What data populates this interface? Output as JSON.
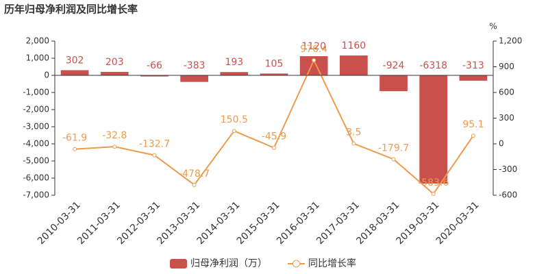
{
  "chart_data": {
    "type": "bar",
    "title": "历年归母净利润及同比增长率",
    "y2_label": "%",
    "categories": [
      "2010-03-31",
      "2011-03-31",
      "2012-03-31",
      "2013-03-31",
      "2014-03-31",
      "2015-03-31",
      "2016-03-31",
      "2017-03-31",
      "2018-03-31",
      "2019-03-31",
      "2020-03-31"
    ],
    "series": [
      {
        "name": "归母净利润（万）",
        "type": "bar",
        "color": "#c9504c",
        "values": [
          302,
          203,
          -66,
          -383,
          193,
          105,
          1120,
          1160,
          -924,
          -6318,
          -313
        ]
      },
      {
        "name": "同比增长率",
        "type": "line",
        "axis": "y2",
        "color": "#ee9a4d",
        "values": [
          -61.9,
          -32.8,
          -132.7,
          -478.7,
          150.5,
          -45.9,
          976.4,
          3.5,
          -179.7,
          -583.6,
          95.1
        ]
      }
    ],
    "ylim": [
      -7000,
      2000
    ],
    "yticks": [
      {
        "value": -7000,
        "label": "-7,000"
      },
      {
        "value": -6000,
        "label": "-6,000"
      },
      {
        "value": -5000,
        "label": "-5,000"
      },
      {
        "value": -4000,
        "label": "-4,000"
      },
      {
        "value": -3000,
        "label": "-3,000"
      },
      {
        "value": -2000,
        "label": "-2,000"
      },
      {
        "value": -1000,
        "label": "-1,000"
      },
      0,
      {
        "value": 1000,
        "label": "1,000"
      },
      {
        "value": 2000,
        "label": "2,000"
      }
    ],
    "y2lim": [
      -600,
      1200
    ],
    "y2ticks": [
      -600,
      -300,
      0,
      300,
      600,
      900,
      {
        "value": 1200,
        "label": "1,200"
      }
    ],
    "legend": "bottom"
  }
}
